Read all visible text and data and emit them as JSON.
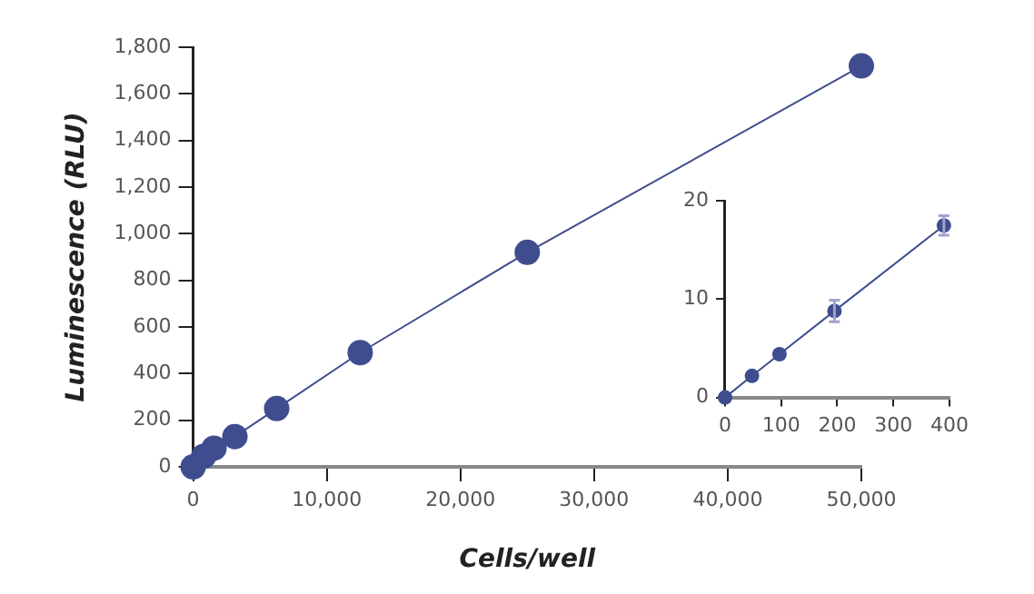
{
  "chart_data": [
    {
      "type": "line",
      "xlabel": "Cells/well",
      "ylabel": "Luminescence (RLU)",
      "x": [
        0,
        780,
        1560,
        3125,
        6250,
        12500,
        25000,
        50000
      ],
      "xlim": [
        0,
        50000
      ],
      "xticks": [
        0,
        {
          "value": 10000,
          "label": "10,000"
        },
        {
          "value": 20000,
          "label": "20,000"
        },
        {
          "value": 30000,
          "label": "30,000"
        },
        {
          "value": 40000,
          "label": "40,000"
        },
        {
          "value": 50000,
          "label": "50,000"
        }
      ],
      "ylim": [
        0,
        1800
      ],
      "yticks": [
        0,
        200,
        400,
        600,
        800,
        {
          "value": 1000,
          "label": "1,000"
        },
        {
          "value": 1200,
          "label": "1,200"
        },
        {
          "value": 1400,
          "label": "1,400"
        },
        {
          "value": 1600,
          "label": "1,600"
        },
        {
          "value": 1800,
          "label": "1,800"
        }
      ],
      "grid": false,
      "legend": false,
      "marker": "circle",
      "line_style": "solid",
      "series": [
        {
          "color": "#3f4d8f",
          "values": [
            0,
            45,
            80,
            130,
            250,
            490,
            920,
            1720
          ]
        }
      ]
    },
    {
      "type": "line",
      "x": [
        0,
        48,
        97,
        195,
        390
      ],
      "xlim": [
        0,
        400
      ],
      "xticks": [
        0,
        100,
        200,
        300,
        400
      ],
      "ylim": [
        0,
        20
      ],
      "yticks": [
        0,
        10,
        20
      ],
      "grid": false,
      "legend": false,
      "marker": "circle",
      "line_style": "solid",
      "series": [
        {
          "color": "#3f4d8f",
          "values": [
            0,
            2.2,
            4.4,
            8.8,
            17.5
          ],
          "errors": [
            null,
            null,
            null,
            1.1,
            1
          ]
        }
      ]
    }
  ]
}
